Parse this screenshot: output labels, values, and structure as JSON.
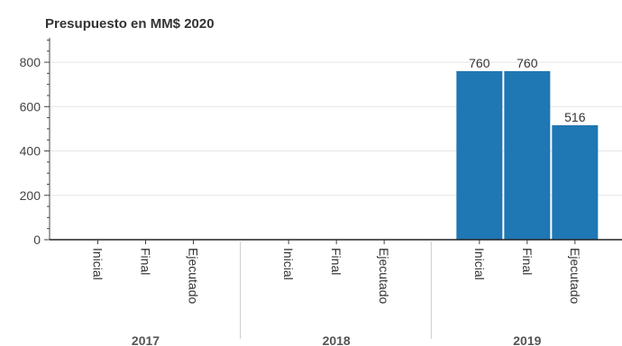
{
  "chart_data": {
    "type": "bar",
    "title": "Presupuesto en MM$ 2020",
    "groups": [
      "2017",
      "2018",
      "2019"
    ],
    "categories": [
      "Inicial",
      "Final",
      "Ejecutado"
    ],
    "series": [
      {
        "group": "2017",
        "values": [
          null,
          null,
          null
        ],
        "labels": [
          "",
          "",
          ""
        ]
      },
      {
        "group": "2018",
        "values": [
          null,
          null,
          null
        ],
        "labels": [
          "",
          "",
          ""
        ]
      },
      {
        "group": "2019",
        "values": [
          760,
          760,
          516
        ],
        "labels": [
          "760",
          "760",
          "516"
        ]
      }
    ],
    "y_ticks": [
      0,
      200,
      400,
      600,
      800
    ],
    "y_tick_labels": [
      "0",
      "200",
      "400",
      "600",
      "800"
    ],
    "ylim": [
      0,
      910
    ],
    "bar_color": "#1f77b4",
    "grid": true,
    "legend": "none"
  }
}
